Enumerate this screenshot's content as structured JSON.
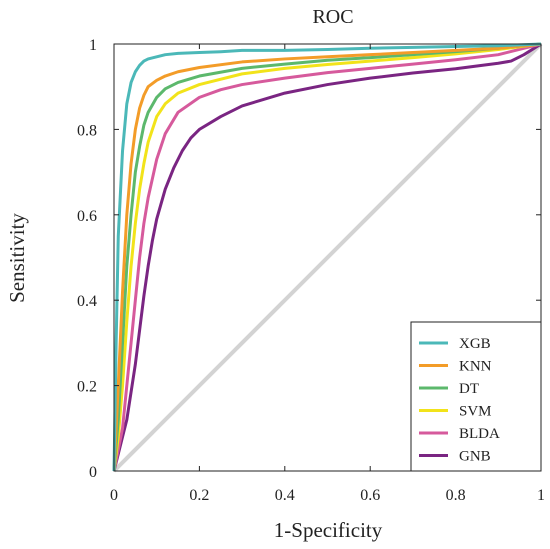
{
  "chart_data": {
    "type": "line",
    "title": "ROC",
    "xlabel": "1-Specificity",
    "ylabel": "Sensitivity",
    "xlim": [
      0,
      1
    ],
    "ylim": [
      0,
      1
    ],
    "grid": false,
    "legend_position": "bottom-right",
    "x_ticks": [
      "0",
      "0.2",
      "0.4",
      "0.6",
      "0.8",
      "1"
    ],
    "y_ticks": [
      "0",
      "0.2",
      "0.4",
      "0.6",
      "0.8",
      "1"
    ],
    "diagonal": {
      "x": [
        0,
        1
      ],
      "y": [
        0,
        1
      ],
      "color": "#d3d3d3"
    },
    "series": [
      {
        "name": "XGB",
        "color": "#4bb8b8",
        "x": [
          0,
          0.005,
          0.01,
          0.02,
          0.03,
          0.04,
          0.05,
          0.06,
          0.07,
          0.08,
          0.1,
          0.12,
          0.15,
          0.2,
          0.25,
          0.3,
          0.4,
          0.5,
          0.6,
          0.7,
          0.8,
          0.9,
          1.0
        ],
        "y": [
          0,
          0.3,
          0.55,
          0.75,
          0.86,
          0.91,
          0.935,
          0.95,
          0.96,
          0.965,
          0.97,
          0.975,
          0.978,
          0.98,
          0.982,
          0.985,
          0.985,
          0.987,
          0.99,
          0.992,
          0.994,
          0.996,
          1.0
        ]
      },
      {
        "name": "KNN",
        "color": "#f39c28",
        "x": [
          0,
          0.01,
          0.02,
          0.03,
          0.04,
          0.05,
          0.06,
          0.07,
          0.08,
          0.1,
          0.12,
          0.15,
          0.2,
          0.3,
          0.4,
          0.5,
          0.6,
          0.7,
          0.8,
          0.9,
          1.0
        ],
        "y": [
          0,
          0.2,
          0.42,
          0.6,
          0.72,
          0.8,
          0.85,
          0.88,
          0.9,
          0.915,
          0.925,
          0.935,
          0.945,
          0.958,
          0.965,
          0.97,
          0.975,
          0.98,
          0.985,
          0.99,
          1.0
        ]
      },
      {
        "name": "DT",
        "color": "#5cb86c",
        "x": [
          0,
          0.01,
          0.02,
          0.03,
          0.04,
          0.05,
          0.06,
          0.07,
          0.08,
          0.1,
          0.12,
          0.15,
          0.2,
          0.3,
          0.4,
          0.5,
          0.6,
          0.7,
          0.8,
          0.9,
          1.0
        ],
        "y": [
          0,
          0.12,
          0.3,
          0.48,
          0.6,
          0.7,
          0.76,
          0.81,
          0.84,
          0.875,
          0.895,
          0.91,
          0.925,
          0.943,
          0.953,
          0.962,
          0.968,
          0.975,
          0.982,
          0.99,
          1.0
        ]
      },
      {
        "name": "SVM",
        "color": "#f2e31a",
        "x": [
          0,
          0.01,
          0.02,
          0.03,
          0.04,
          0.05,
          0.06,
          0.07,
          0.08,
          0.1,
          0.12,
          0.15,
          0.2,
          0.3,
          0.4,
          0.5,
          0.6,
          0.7,
          0.8,
          0.9,
          1.0
        ],
        "y": [
          0,
          0.08,
          0.2,
          0.35,
          0.48,
          0.58,
          0.66,
          0.72,
          0.77,
          0.83,
          0.86,
          0.885,
          0.905,
          0.93,
          0.943,
          0.952,
          0.96,
          0.968,
          0.977,
          0.987,
          1.0
        ]
      },
      {
        "name": "BLDA",
        "color": "#d65a9c",
        "x": [
          0,
          0.02,
          0.03,
          0.04,
          0.05,
          0.06,
          0.07,
          0.08,
          0.1,
          0.12,
          0.15,
          0.2,
          0.25,
          0.3,
          0.4,
          0.5,
          0.6,
          0.7,
          0.8,
          0.9,
          1.0
        ],
        "y": [
          0,
          0.1,
          0.2,
          0.3,
          0.4,
          0.5,
          0.58,
          0.64,
          0.73,
          0.79,
          0.84,
          0.875,
          0.893,
          0.905,
          0.92,
          0.933,
          0.943,
          0.953,
          0.963,
          0.975,
          1.0
        ]
      },
      {
        "name": "GNB",
        "color": "#7a2582",
        "x": [
          0,
          0.03,
          0.05,
          0.06,
          0.07,
          0.08,
          0.09,
          0.1,
          0.12,
          0.14,
          0.16,
          0.18,
          0.2,
          0.25,
          0.3,
          0.4,
          0.5,
          0.6,
          0.7,
          0.8,
          0.9,
          0.93,
          0.96,
          1.0
        ],
        "y": [
          0,
          0.12,
          0.25,
          0.33,
          0.41,
          0.48,
          0.54,
          0.59,
          0.66,
          0.71,
          0.75,
          0.78,
          0.8,
          0.83,
          0.855,
          0.885,
          0.905,
          0.92,
          0.932,
          0.942,
          0.955,
          0.96,
          0.975,
          1.0
        ]
      }
    ]
  }
}
